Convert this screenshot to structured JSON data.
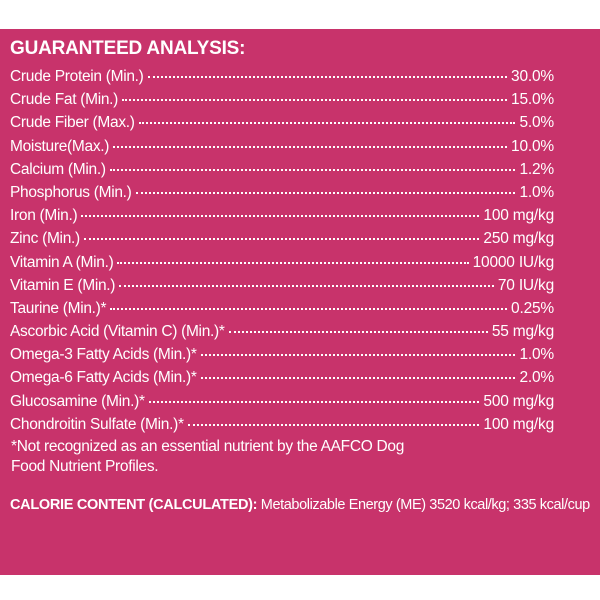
{
  "panel": {
    "background_color": "#c8336b",
    "text_color": "#ffffff"
  },
  "heading": "GUARANTEED ANALYSIS:",
  "rows": [
    {
      "name": "Crude Protein (Min.)",
      "value": "30.0%"
    },
    {
      "name": "Crude Fat (Min.)",
      "value": "15.0%"
    },
    {
      "name": "Crude Fiber (Max.)",
      "value": "5.0%"
    },
    {
      "name": "Moisture(Max.)",
      "value": "10.0%"
    },
    {
      "name": "Calcium (Min.)",
      "value": "1.2%"
    },
    {
      "name": "Phosphorus (Min.)",
      "value": "1.0%"
    },
    {
      "name": "Iron (Min.)",
      "value": "100 mg/kg"
    },
    {
      "name": "Zinc (Min.)",
      "value": "250 mg/kg"
    },
    {
      "name": "Vitamin A (Min.)",
      "value": "10000 IU/kg"
    },
    {
      "name": "Vitamin E (Min.)",
      "value": "70 IU/kg"
    },
    {
      "name": "Taurine (Min.)*",
      "value": "0.25%"
    },
    {
      "name": "Ascorbic Acid (Vitamin C) (Min.)*",
      "value": "55 mg/kg"
    },
    {
      "name": "Omega-3 Fatty Acids (Min.)*",
      "value": "1.0%"
    },
    {
      "name": "Omega-6 Fatty Acids (Min.)*",
      "value": "2.0%"
    },
    {
      "name": "Glucosamine (Min.)*",
      "value": "500 mg/kg"
    },
    {
      "name": "Chondroitin Sulfate (Min.)*",
      "value": "100 mg/kg"
    }
  ],
  "footnote": "*Not recognized as an essential nutrient by the AAFCO Dog\n Food Nutrient Profiles.",
  "calorie": {
    "heading": "CALORIE CONTENT (CALCULATED):",
    "text": " Metabolizable Energy (ME) 3520 kcal/kg; 335 kcal/cup"
  }
}
